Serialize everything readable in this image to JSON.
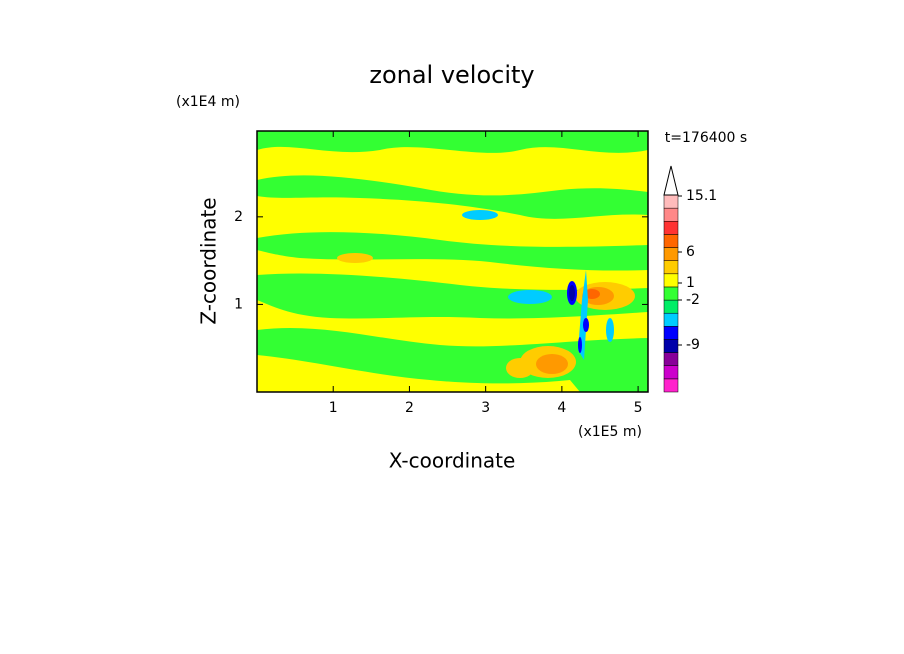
{
  "chart_data": {
    "type": "contour",
    "title": "zonal velocity",
    "x_label": "X-coordinate",
    "y_label": "Z-coordinate",
    "x_unit": "(x1E5 m)",
    "y_unit": "(x1E4 m)",
    "time_label": "t=176400 s",
    "xlim": [
      0,
      5.13
    ],
    "ylim": [
      0,
      2.98
    ],
    "xticks": [
      1,
      2,
      3,
      4,
      5
    ],
    "yticks": [
      1,
      2
    ],
    "colorbar": {
      "colors": [
        "#ff22cc",
        "#cc00cc",
        "#880099",
        "#0000aa",
        "#0000ff",
        "#00ccff",
        "#00ee66",
        "#33ff33",
        "#ffff00",
        "#ffcc00",
        "#ff9900",
        "#ff6600",
        "#ff3333",
        "#ff8888",
        "#ffbbbb"
      ],
      "ticks": [
        -9,
        -2,
        1,
        6,
        15.1
      ]
    }
  }
}
